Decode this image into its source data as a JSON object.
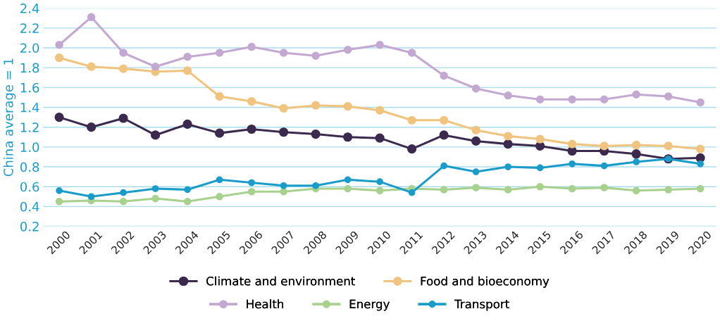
{
  "chart_data": {
    "type": "line",
    "ylabel": "China average = 1",
    "categories": [
      "2000",
      "2001",
      "2002",
      "2003",
      "2004",
      "2005",
      "2006",
      "2007",
      "2008",
      "2009",
      "2010",
      "2011",
      "2012",
      "2013",
      "2014",
      "2015",
      "2016",
      "2017",
      "2018",
      "2019",
      "2020"
    ],
    "series": [
      {
        "name": "Climate and environment",
        "color": "#3b2a4e",
        "values": [
          1.3,
          1.2,
          1.29,
          1.12,
          1.23,
          1.14,
          1.18,
          1.15,
          1.13,
          1.1,
          1.09,
          0.98,
          1.12,
          1.06,
          1.03,
          1.01,
          0.96,
          0.96,
          0.93,
          0.88,
          0.89
        ]
      },
      {
        "name": "Food and bioeconomy",
        "color": "#f0c47e",
        "values": [
          1.9,
          1.81,
          1.79,
          1.76,
          1.77,
          1.51,
          1.46,
          1.39,
          1.42,
          1.41,
          1.37,
          1.27,
          1.27,
          1.17,
          1.11,
          1.08,
          1.03,
          1.01,
          1.02,
          1.01,
          0.98
        ]
      },
      {
        "name": "Health",
        "color": "#c3a8d1",
        "values": [
          2.03,
          2.31,
          1.95,
          1.81,
          1.91,
          1.95,
          2.01,
          1.95,
          1.92,
          1.98,
          2.03,
          1.95,
          1.72,
          1.59,
          1.52,
          1.48,
          1.48,
          1.48,
          1.53,
          1.51,
          1.45
        ]
      },
      {
        "name": "Energy",
        "color": "#a9d18e",
        "values": [
          0.45,
          0.46,
          0.45,
          0.48,
          0.45,
          0.5,
          0.55,
          0.55,
          0.58,
          0.58,
          0.56,
          0.58,
          0.57,
          0.59,
          0.57,
          0.6,
          0.58,
          0.59,
          0.56,
          0.57,
          0.58
        ]
      },
      {
        "name": "Transport",
        "color": "#1a9ccb",
        "values": [
          0.56,
          0.5,
          0.54,
          0.58,
          0.57,
          0.67,
          0.64,
          0.61,
          0.61,
          0.67,
          0.65,
          0.54,
          0.81,
          0.75,
          0.8,
          0.79,
          0.83,
          0.81,
          0.85,
          0.88,
          0.83
        ]
      }
    ],
    "ylim": [
      0.2,
      2.4
    ],
    "yticks": [
      {
        "value": 0.2,
        "label": "0.2"
      },
      {
        "value": 0.4,
        "label": "0.4"
      },
      {
        "value": 0.6,
        "label": "0.6"
      },
      {
        "value": 0.8,
        "label": "0.8"
      },
      {
        "value": 1.0,
        "label": "1.0"
      },
      {
        "value": 1.2,
        "label": "1.2"
      },
      {
        "value": 1.4,
        "label": "1.4"
      },
      {
        "value": 1.6,
        "label": "1.6"
      },
      {
        "value": 1.8,
        "label": "1.8"
      },
      {
        "value": 2.0,
        "label": "2.0"
      },
      {
        "value": 2.2,
        "label": "2.2"
      },
      {
        "value": 2.4,
        "label": "2.4"
      }
    ],
    "grid": "y",
    "legend": "bottom",
    "marker": "circle",
    "line_style": "solid"
  }
}
